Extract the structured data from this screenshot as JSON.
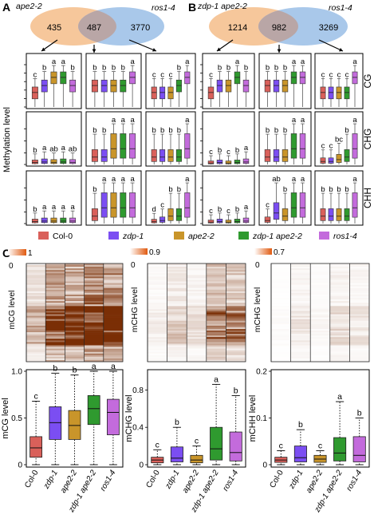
{
  "panel_letters": [
    "A",
    "B",
    "C"
  ],
  "colors": {
    "Col-0": "#d9605a",
    "zdp-1": "#7b4ef2",
    "ape2-2": "#c9952a",
    "zdp-1 ape2-2": "#2f9a2f",
    "ros1-4": "#c36bdc",
    "venn_left": "#f6c79b",
    "venn_right": "#a9c8ea",
    "venn_overlap": "#b9a6a6",
    "heat_dark": "#7a2e05",
    "heat_light": "#ffffff"
  },
  "venn": [
    {
      "left_label": "ape2-2",
      "right_label": "ros1-4",
      "counts": [
        "435",
        "487",
        "3770"
      ]
    },
    {
      "left_label": "zdp-1 ape2-2",
      "right_label": "ros1-4",
      "counts": [
        "1214",
        "982",
        "3269"
      ]
    }
  ],
  "legend": [
    "Col-0",
    "zdp-1",
    "ape2-2",
    "zdp-1 ape2-2",
    "ros1-4"
  ],
  "grid_ylabel": "Methylation level",
  "context_labels": [
    "CG",
    "CHG",
    "CHH"
  ],
  "grid_letters": [
    [
      [
        "c",
        "b",
        "a",
        "a",
        "b"
      ],
      [
        "b",
        "b",
        "b",
        "b",
        "a"
      ],
      [
        "c",
        "c",
        "c",
        "b",
        "a"
      ],
      [
        "c",
        "b",
        "b",
        "a",
        "b"
      ],
      [
        "b",
        "b",
        "b",
        "a",
        "a"
      ],
      [
        "c",
        "c",
        "c",
        "c",
        "a"
      ]
    ],
    [
      [
        "b",
        "a",
        "ab",
        "a",
        "ab"
      ],
      [
        "b",
        "b",
        "a",
        "a",
        "a"
      ],
      [
        "b",
        "b",
        "b",
        "b",
        "a"
      ],
      [
        "c",
        "b",
        "c",
        "b",
        "a"
      ],
      [
        "b",
        "b",
        "b",
        "a",
        "a"
      ],
      [
        "c",
        "c",
        "bc",
        "b",
        "a"
      ]
    ],
    [
      [
        "b",
        "a",
        "a",
        "a",
        "a"
      ],
      [
        "b",
        "a",
        "a",
        "a",
        "a"
      ],
      [
        "d",
        "c",
        "b",
        "b",
        "a"
      ],
      [
        "c",
        "b",
        "c",
        "b",
        "a"
      ],
      [
        "c",
        "ab",
        "b",
        "a",
        "a"
      ],
      [
        "b",
        "b",
        "b",
        "b",
        "a"
      ]
    ]
  ],
  "heatmaps": [
    {
      "axis_label": "mCG level",
      "scale_max": "1",
      "scale_min": "0"
    },
    {
      "axis_label": "mCHG level",
      "scale_max": "0.9",
      "scale_min": "0"
    },
    {
      "axis_label": "mCHG level",
      "scale_max": "0.7",
      "scale_min": "0"
    }
  ],
  "chart_data": [
    {
      "type": "box",
      "ylabel": "mCG level",
      "ylim": [
        0,
        1.0
      ],
      "yticks": [
        0,
        0.5,
        1.0
      ],
      "categories": [
        "Col-0",
        "zdp-1",
        "ape2-2",
        "zdp-1 ape2-2",
        "ros1-4"
      ],
      "letters": [
        "c",
        "b",
        "b",
        "a",
        "a"
      ],
      "boxes": [
        {
          "whislo": 0.0,
          "q1": 0.08,
          "med": 0.18,
          "q3": 0.3,
          "whishi": 0.68
        },
        {
          "whislo": 0.0,
          "q1": 0.27,
          "med": 0.45,
          "q3": 0.62,
          "whishi": 0.98
        },
        {
          "whislo": 0.0,
          "q1": 0.27,
          "med": 0.42,
          "q3": 0.58,
          "whishi": 0.96
        },
        {
          "whislo": 0.0,
          "q1": 0.43,
          "med": 0.6,
          "q3": 0.74,
          "whishi": 1.0
        },
        {
          "whislo": 0.0,
          "q1": 0.32,
          "med": 0.56,
          "q3": 0.7,
          "whishi": 1.0
        }
      ]
    },
    {
      "type": "box",
      "ylabel": "mCHG level",
      "ylim": [
        0,
        1.0
      ],
      "yticks": [
        0,
        0.4,
        0.8
      ],
      "categories": [
        "Col-0",
        "zdp-1",
        "ape2-2",
        "zdp-1 ape2-2",
        "ros1-4"
      ],
      "letters": [
        "c",
        "b",
        "c",
        "a",
        "b"
      ],
      "boxes": [
        {
          "whislo": 0.0,
          "q1": 0.02,
          "med": 0.05,
          "q3": 0.08,
          "whishi": 0.16
        },
        {
          "whislo": 0.0,
          "q1": 0.03,
          "med": 0.07,
          "q3": 0.19,
          "whishi": 0.4
        },
        {
          "whislo": 0.0,
          "q1": 0.02,
          "med": 0.05,
          "q3": 0.1,
          "whishi": 0.2
        },
        {
          "whislo": 0.0,
          "q1": 0.05,
          "med": 0.17,
          "q3": 0.4,
          "whishi": 0.86
        },
        {
          "whislo": 0.0,
          "q1": 0.04,
          "med": 0.13,
          "q3": 0.35,
          "whishi": 0.74
        }
      ]
    },
    {
      "type": "box",
      "ylabel": "mCHH level",
      "ylim": [
        0,
        0.2
      ],
      "yticks": [
        0,
        0.1,
        0.2
      ],
      "categories": [
        "Col-0",
        "zdp-1",
        "ape2-2",
        "zdp-1 ape2-2",
        "ros1-4"
      ],
      "letters": [
        "c",
        "b",
        "c",
        "a",
        "b"
      ],
      "boxes": [
        {
          "whislo": 0.0,
          "q1": 0.005,
          "med": 0.01,
          "q3": 0.016,
          "whishi": 0.03
        },
        {
          "whislo": 0.0,
          "q1": 0.006,
          "med": 0.015,
          "q3": 0.04,
          "whishi": 0.075
        },
        {
          "whislo": 0.0,
          "q1": 0.005,
          "med": 0.012,
          "q3": 0.02,
          "whishi": 0.03
        },
        {
          "whislo": 0.0,
          "q1": 0.008,
          "med": 0.025,
          "q3": 0.058,
          "whishi": 0.135
        },
        {
          "whislo": 0.0,
          "q1": 0.006,
          "med": 0.02,
          "q3": 0.06,
          "whishi": 0.1
        }
      ]
    }
  ]
}
